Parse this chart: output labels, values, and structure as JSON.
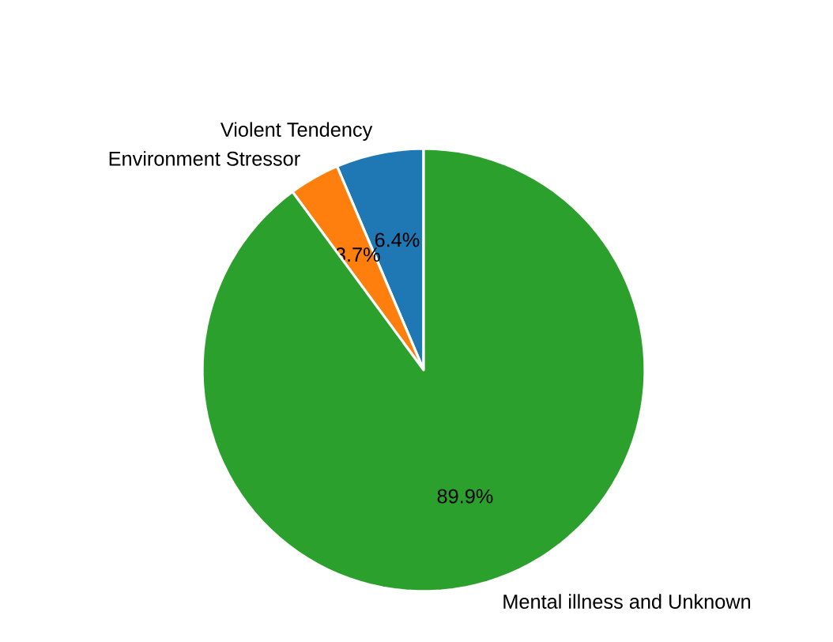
{
  "chart_data": {
    "type": "pie",
    "categories": [
      "Violent Tendency",
      "Environment Stressor",
      "Mental illness and Unknown"
    ],
    "values": [
      6.4,
      3.7,
      89.9
    ],
    "colors": [
      "#1f77b4",
      "#ff7f0e",
      "#2ca02c"
    ],
    "value_labels": [
      "6.4%",
      "3.7%",
      "89.9%"
    ]
  }
}
